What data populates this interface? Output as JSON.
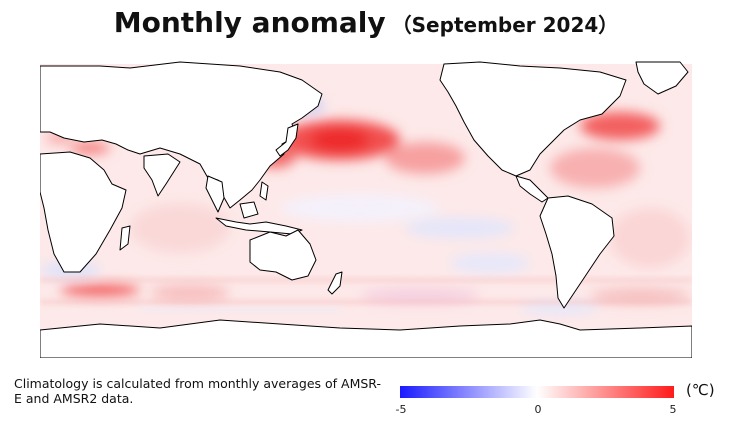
{
  "header": {
    "title": "Monthly anomaly",
    "period": "（September 2024）"
  },
  "map": {
    "land_color": "#ffffff",
    "coast_color": "#000000",
    "warm_color": "#ff2020",
    "cool_color": "#2020ff"
  },
  "note": {
    "text": "Climatology is calculated from monthly averages of AMSR-E and AMSR2 data."
  },
  "colorbar": {
    "unit": "(℃)",
    "min_label": "-5",
    "mid_label": "0",
    "max_label": "5",
    "colors": [
      "#1a1aff",
      "#ffffff",
      "#ff1a1a"
    ]
  }
}
